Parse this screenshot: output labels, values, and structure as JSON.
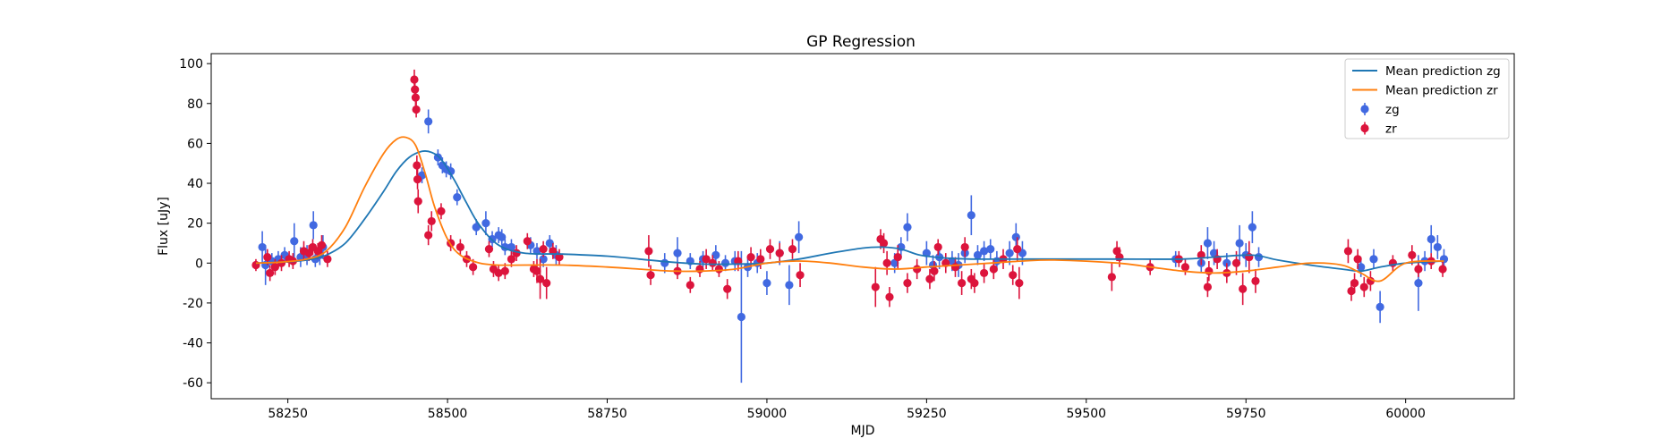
{
  "chart_data": {
    "type": "scatter",
    "title": "GP Regression",
    "xlabel": "MJD",
    "ylabel": "Flux [uJy]",
    "xlim": [
      58130,
      60170
    ],
    "ylim": [
      -68,
      105
    ],
    "xticks": [
      58250,
      58500,
      58750,
      59000,
      59250,
      59500,
      59750,
      60000
    ],
    "yticks": [
      -60,
      -40,
      -20,
      0,
      20,
      40,
      60,
      80,
      100
    ],
    "grid": false,
    "legend_position": "top-right",
    "series": [
      {
        "name": "Mean prediction zg",
        "kind": "line",
        "color": "#1f77b4",
        "x": [
          58200,
          58240,
          58280,
          58310,
          58340,
          58370,
          58400,
          58420,
          58440,
          58460,
          58475,
          58490,
          58510,
          58530,
          58550,
          58580,
          58620,
          58680,
          58750,
          58800,
          58850,
          58900,
          58950,
          59000,
          59050,
          59100,
          59150,
          59180,
          59210,
          59240,
          59280,
          59320,
          59380,
          59450,
          59550,
          59650,
          59700,
          59760,
          59800,
          59850,
          59900,
          59930,
          59960,
          60000,
          60060
        ],
        "y": [
          0,
          0.5,
          1.5,
          4,
          10,
          22,
          36,
          46,
          53,
          56,
          55.5,
          52,
          42,
          30,
          19,
          9,
          5,
          4.5,
          3.5,
          2,
          0.5,
          -0.5,
          -0.5,
          0,
          2,
          5,
          7.5,
          8,
          7,
          4,
          2.5,
          2,
          2,
          2,
          2,
          2,
          3,
          4,
          1.5,
          -1,
          -3,
          -4,
          -2,
          0,
          1
        ]
      },
      {
        "name": "Mean prediction zr",
        "kind": "line",
        "color": "#ff7f0e",
        "x": [
          58200,
          58240,
          58280,
          58310,
          58340,
          58370,
          58400,
          58420,
          58435,
          58450,
          58465,
          58480,
          58500,
          58520,
          58550,
          58580,
          58620,
          58680,
          58750,
          58800,
          58850,
          58900,
          58950,
          59000,
          59050,
          59100,
          59150,
          59200,
          59250,
          59300,
          59350,
          59400,
          59450,
          59550,
          59600,
          59650,
          59700,
          59750,
          59800,
          59850,
          59900,
          59930,
          59960,
          60000,
          60060
        ],
        "y": [
          0,
          0.5,
          2,
          6,
          18,
          38,
          55,
          62,
          63,
          59,
          45,
          28,
          12,
          4,
          0,
          -1,
          -1,
          -1,
          -2,
          -3,
          -4,
          -4,
          -3,
          0,
          1,
          0,
          -2,
          -3,
          -2,
          -1,
          0,
          1,
          1.5,
          0,
          -2,
          -4,
          -5,
          -4,
          -2,
          0,
          -1,
          -5,
          -9,
          0,
          1
        ]
      },
      {
        "name": "zg",
        "kind": "errorbar",
        "color": "#4169e1",
        "x": [
          58210,
          58215,
          58225,
          58235,
          58245,
          58260,
          58270,
          58280,
          58290,
          58293,
          58300,
          58305,
          58460,
          58470,
          58485,
          58492,
          58498,
          58505,
          58515,
          58545,
          58560,
          58570,
          58580,
          58585,
          58590,
          58600,
          58630,
          58640,
          58650,
          58660,
          58670,
          58840,
          58860,
          58880,
          58900,
          58920,
          58935,
          58950,
          58960,
          58970,
          58985,
          59000,
          59020,
          59035,
          59050,
          59200,
          59210,
          59220,
          59250,
          59260,
          59270,
          59290,
          59300,
          59310,
          59320,
          59330,
          59340,
          59350,
          59360,
          59380,
          59390,
          59400,
          59640,
          59680,
          59690,
          59700,
          59720,
          59740,
          59750,
          59760,
          59770,
          59930,
          59950,
          59960,
          60020,
          60030,
          60040,
          60050,
          60060
        ],
        "y": [
          8,
          -1,
          1,
          2,
          4,
          11,
          3,
          4,
          19,
          2,
          4,
          8,
          44,
          71,
          53,
          49,
          47,
          46,
          33,
          18,
          20,
          12,
          14,
          13,
          8,
          8,
          9,
          6,
          2,
          10,
          4,
          0,
          5,
          1,
          2,
          4,
          0,
          1,
          -27,
          -2,
          0,
          -10,
          5,
          -11,
          13,
          0,
          8,
          18,
          5,
          -1,
          3,
          1,
          -1,
          5,
          24,
          4,
          6,
          7,
          1,
          5,
          13,
          5,
          2,
          0,
          10,
          5,
          0,
          10,
          4,
          18,
          3,
          -2,
          2,
          -22,
          -10,
          1,
          12,
          8,
          2
        ],
        "err": [
          8,
          10,
          4,
          4,
          4,
          9,
          5,
          5,
          7,
          4,
          5,
          6,
          4,
          6,
          4,
          4,
          4,
          4,
          4,
          4,
          6,
          4,
          4,
          4,
          4,
          4,
          4,
          4,
          4,
          4,
          5,
          5,
          8,
          4,
          4,
          5,
          4,
          5,
          33,
          5,
          5,
          6,
          6,
          10,
          8,
          5,
          5,
          7,
          6,
          5,
          6,
          5,
          6,
          5,
          10,
          5,
          5,
          5,
          5,
          6,
          7,
          6,
          4,
          5,
          8,
          6,
          5,
          9,
          6,
          8,
          5,
          5,
          5,
          8,
          14,
          5,
          7,
          6,
          5
        ]
      },
      {
        "name": "zr",
        "kind": "errorbar",
        "color": "#dc143c",
        "x": [
          58200,
          58218,
          58222,
          58230,
          58240,
          58252,
          58258,
          58275,
          58283,
          58289,
          58297,
          58303,
          58312,
          58448,
          58449,
          58450,
          58451,
          58452,
          58453,
          58454,
          58470,
          58475,
          58490,
          58505,
          58520,
          58530,
          58540,
          58565,
          58572,
          58580,
          58590,
          58600,
          58608,
          58625,
          58635,
          58640,
          58645,
          58650,
          58655,
          58665,
          58675,
          58815,
          58818,
          58860,
          58880,
          58895,
          58905,
          58915,
          58925,
          58938,
          58955,
          58975,
          58990,
          59005,
          59020,
          59040,
          59052,
          59170,
          59178,
          59183,
          59188,
          59192,
          59205,
          59220,
          59235,
          59255,
          59262,
          59268,
          59280,
          59295,
          59305,
          59310,
          59320,
          59325,
          59340,
          59355,
          59370,
          59385,
          59392,
          59395,
          59540,
          59548,
          59552,
          59600,
          59645,
          59655,
          59680,
          59690,
          59692,
          59705,
          59720,
          59735,
          59745,
          59755,
          59765,
          59910,
          59915,
          59920,
          59925,
          59935,
          59945,
          59980,
          60010,
          60020,
          60040,
          60058
        ],
        "y": [
          -1,
          3,
          -5,
          -2,
          0,
          2,
          1,
          6,
          5,
          8,
          6,
          9,
          2,
          92,
          87,
          83,
          77,
          49,
          42,
          31,
          14,
          21,
          26,
          10,
          8,
          2,
          -2,
          7,
          -3,
          -5,
          -4,
          2,
          5,
          11,
          -3,
          -4,
          -8,
          7,
          -10,
          6,
          3,
          6,
          -6,
          -4,
          -11,
          -3,
          2,
          0,
          -3,
          -13,
          1,
          3,
          2,
          7,
          5,
          7,
          -6,
          -12,
          12,
          10,
          0,
          -17,
          3,
          -10,
          -3,
          -8,
          -4,
          8,
          0,
          -2,
          -10,
          8,
          -8,
          -10,
          -5,
          -3,
          2,
          -6,
          7,
          -10,
          -7,
          6,
          3,
          -2,
          2,
          -2,
          4,
          -12,
          -4,
          2,
          -5,
          0,
          -13,
          3,
          -9,
          6,
          -14,
          -10,
          2,
          -12,
          -9,
          0,
          4,
          -3,
          1,
          -3
        ],
        "err": [
          3,
          4,
          4,
          4,
          4,
          4,
          4,
          5,
          4,
          4,
          4,
          5,
          4,
          5,
          4,
          4,
          4,
          5,
          5,
          6,
          5,
          5,
          4,
          4,
          4,
          4,
          4,
          4,
          4,
          4,
          4,
          4,
          4,
          4,
          4,
          6,
          10,
          4,
          8,
          4,
          4,
          8,
          5,
          4,
          4,
          4,
          5,
          4,
          4,
          5,
          5,
          5,
          5,
          5,
          5,
          5,
          6,
          10,
          5,
          5,
          6,
          5,
          6,
          5,
          5,
          5,
          5,
          4,
          5,
          5,
          6,
          5,
          5,
          5,
          5,
          5,
          5,
          5,
          6,
          8,
          7,
          5,
          5,
          4,
          4,
          4,
          5,
          5,
          5,
          5,
          5,
          6,
          8,
          8,
          6,
          6,
          5,
          5,
          5,
          5,
          5,
          4,
          5,
          4,
          4,
          4
        ]
      }
    ]
  }
}
